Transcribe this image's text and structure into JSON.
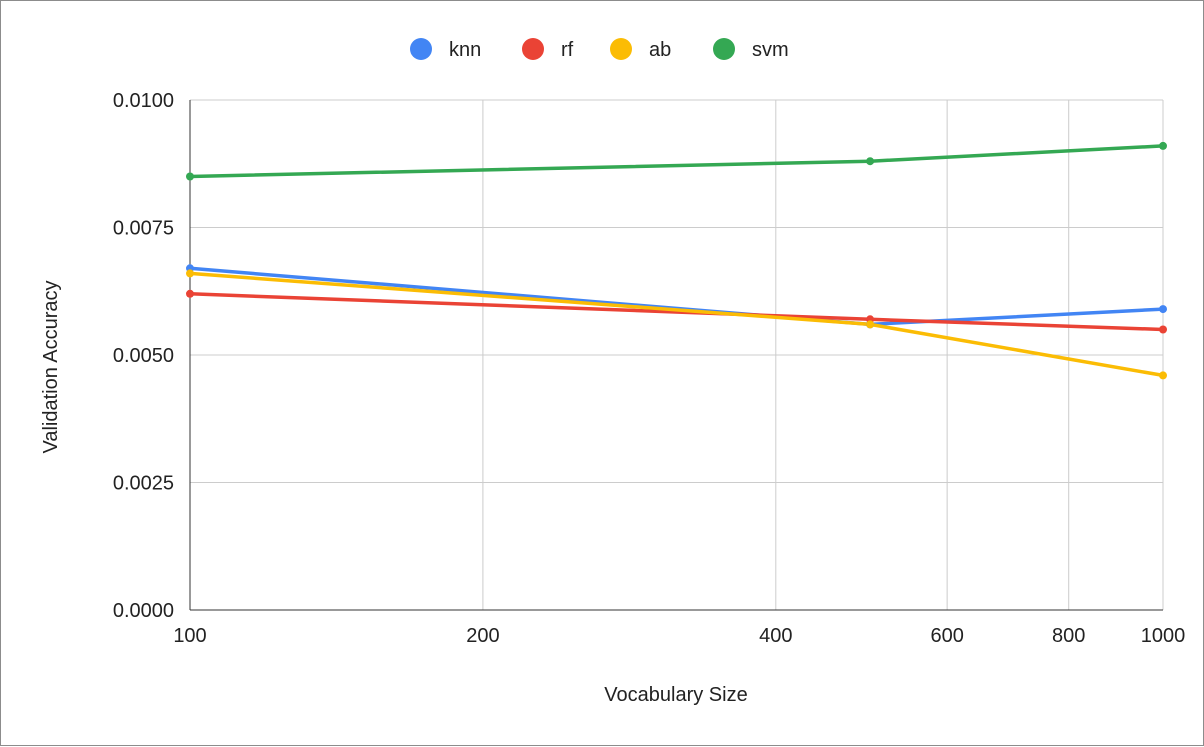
{
  "chart_data": {
    "type": "line",
    "title": "",
    "xlabel": "Vocabulary Size",
    "ylabel": "Validation Accuracy",
    "x_scale": "log",
    "xlim": [
      100,
      1000
    ],
    "ylim": [
      0,
      0.01
    ],
    "x_ticks": [
      100,
      200,
      400,
      600,
      800,
      1000
    ],
    "x_tick_labels": [
      "100",
      "200",
      "400",
      "600",
      "800",
      "1000"
    ],
    "y_ticks": [
      0,
      0.0025,
      0.005,
      0.0075,
      0.01
    ],
    "y_tick_labels": [
      "0.0000",
      "0.0025",
      "0.0050",
      "0.0075",
      "0.0100"
    ],
    "grid": true,
    "legend_position": "top",
    "x": [
      100,
      500,
      1000
    ],
    "series": [
      {
        "name": "knn",
        "color": "#4285f4",
        "values": [
          0.0067,
          0.0056,
          0.0059
        ]
      },
      {
        "name": "rf",
        "color": "#ea4335",
        "values": [
          0.0062,
          0.0057,
          0.0055
        ]
      },
      {
        "name": "ab",
        "color": "#fbbc04",
        "values": [
          0.0066,
          0.0056,
          0.0046
        ]
      },
      {
        "name": "svm",
        "color": "#34a853",
        "values": [
          0.0085,
          0.0088,
          0.0091
        ]
      }
    ]
  }
}
